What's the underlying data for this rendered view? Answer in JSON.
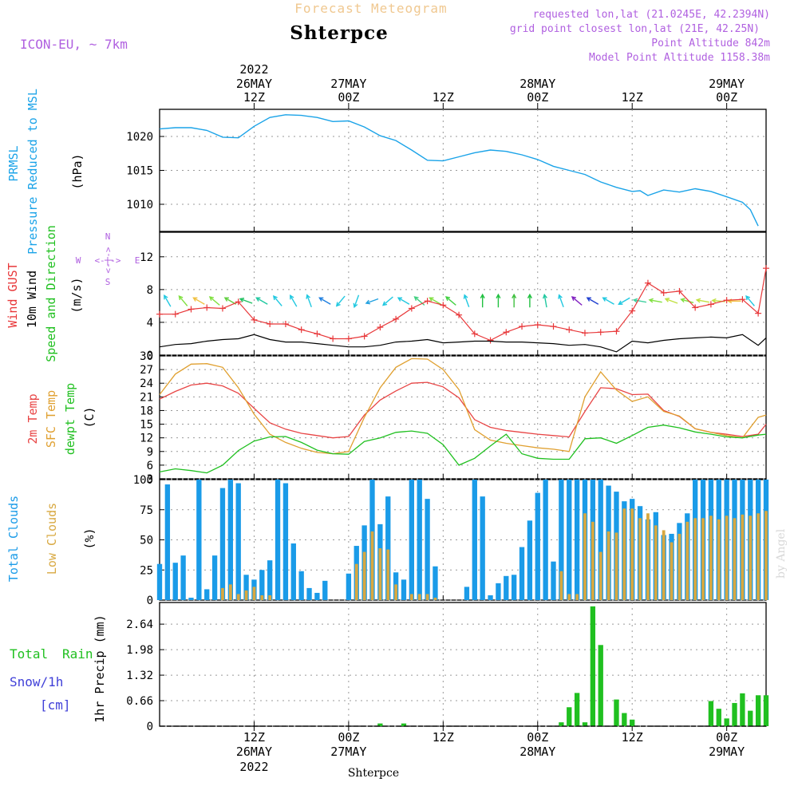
{
  "header": {
    "subtitle": "Forecast Meteogram",
    "station": "Shterpce",
    "model": "ICON-EU, ~ 7km",
    "requested": "requested lon,lat (21.0245E, 42.2394N)",
    "grid": "grid point closest lon,lat (21E, 42.25N)",
    "point_alt": "Point Altitude 842m",
    "model_alt": "Model Point Altitude 1158.38m",
    "credit": "by Angel",
    "footer": "Shterpce"
  },
  "colors": {
    "pressure": "#1aa3e8",
    "gust": "#e8383a",
    "wind": "#000000",
    "temp": "#e84545",
    "sfc": "#e0a030",
    "dew": "#20c020",
    "total_clouds": "#1a9be8",
    "low_clouds": "#d8a840",
    "rain": "#20c020",
    "snow": "#4040d8",
    "header_purple": "#b060e0"
  },
  "top_axis": {
    "year": "2022",
    "labels": [
      {
        "day": "26MAY",
        "hour": "12Z",
        "hour_index": 12
      },
      {
        "day": "27MAY",
        "hour": "00Z",
        "hour_index": 24
      },
      {
        "day": "",
        "hour": "12Z",
        "hour_index": 36
      },
      {
        "day": "28MAY",
        "hour": "00Z",
        "hour_index": 48
      },
      {
        "day": "",
        "hour": "12Z",
        "hour_index": 60
      },
      {
        "day": "29MAY",
        "hour": "00Z",
        "hour_index": 72
      }
    ]
  },
  "bottom_axis": {
    "year": "2022",
    "labels": [
      {
        "hour": "12Z",
        "day": "26MAY",
        "hour_index": 12
      },
      {
        "hour": "00Z",
        "day": "27MAY",
        "hour_index": 24
      },
      {
        "hour": "12Z",
        "day": "",
        "hour_index": 36
      },
      {
        "hour": "00Z",
        "day": "28MAY",
        "hour_index": 48
      },
      {
        "hour": "12Z",
        "day": "",
        "hour_index": 60
      },
      {
        "hour": "00Z",
        "day": "29MAY",
        "hour_index": 72
      }
    ]
  },
  "panels": {
    "pressure": {
      "label1": "PRMSL",
      "label2": "Pressure Reduced to MSL",
      "unit": "(hPa)"
    },
    "wind": {
      "label_gust": "Wind GUST",
      "label_wind": "10m Wind",
      "label_dir": "Speed and Direction",
      "unit": "(m/s)",
      "compass": {
        "n": "N",
        "s": "S",
        "w": "W",
        "e": "E",
        "arrow_ns": "<-|->",
        "arrow_we": "<-|->"
      }
    },
    "temp": {
      "label1": "2m Temp",
      "label2": "SFC Temp",
      "label3": "dewpt Temp",
      "unit": "(C)"
    },
    "clouds": {
      "label1": "Total Clouds",
      "label2": "Low Clouds",
      "unit": "(%)"
    },
    "precip": {
      "label_total": "Total",
      "label_rain": "Rain",
      "label_snow": "Snow/1h",
      "label_cm": "[cm]",
      "unit": "1hr Precip (mm)"
    }
  },
  "chart_data": [
    {
      "type": "line",
      "name": "pressure",
      "ylabel": "(hPa)",
      "ylim": [
        1006,
        1024
      ],
      "yticks": [
        1010,
        1015,
        1020
      ],
      "xlim": [
        0,
        77
      ],
      "x": [
        0,
        2,
        4,
        6,
        8,
        10,
        12,
        14,
        16,
        18,
        20,
        22,
        24,
        26,
        28,
        30,
        32,
        34,
        36,
        38,
        40,
        42,
        44,
        46,
        48,
        50,
        52,
        54,
        56,
        58,
        60,
        61,
        62,
        64,
        66,
        68,
        70,
        72,
        74,
        75,
        76
      ],
      "values": [
        1021.1,
        1021.3,
        1021.3,
        1020.9,
        1019.9,
        1019.8,
        1021.5,
        1022.8,
        1023.2,
        1023.1,
        1022.8,
        1022.2,
        1022.3,
        1021.4,
        1020.1,
        1019.4,
        1018.0,
        1016.5,
        1016.4,
        1017.0,
        1017.6,
        1018.0,
        1017.8,
        1017.3,
        1016.6,
        1015.6,
        1015.0,
        1014.4,
        1013.3,
        1012.5,
        1011.9,
        1012.0,
        1011.3,
        1012.1,
        1011.8,
        1012.3,
        1011.9,
        1011.1,
        1010.3,
        1009.2,
        1006.8
      ]
    },
    {
      "type": "line",
      "name": "wind",
      "ylabel": "(m/s)",
      "ylim": [
        0,
        15
      ],
      "yticks": [
        0,
        4,
        8,
        12
      ],
      "xlim": [
        0,
        77
      ],
      "x": [
        0,
        2,
        4,
        6,
        8,
        10,
        12,
        14,
        16,
        18,
        20,
        22,
        24,
        26,
        28,
        30,
        32,
        34,
        36,
        38,
        40,
        42,
        44,
        46,
        48,
        50,
        52,
        54,
        56,
        58,
        60,
        62,
        64,
        66,
        68,
        70,
        72,
        74,
        76,
        77
      ],
      "series": [
        {
          "name": "Wind GUST",
          "values": [
            5.0,
            5.0,
            5.6,
            5.8,
            5.7,
            6.5,
            4.3,
            3.8,
            3.8,
            3.1,
            2.6,
            2.0,
            2.0,
            2.3,
            3.4,
            4.4,
            5.7,
            6.6,
            6.1,
            4.9,
            2.6,
            1.8,
            2.8,
            3.5,
            3.7,
            3.5,
            3.1,
            2.7,
            2.8,
            2.9,
            5.4,
            8.8,
            7.6,
            7.8,
            5.8,
            6.2,
            6.7,
            6.8,
            5.1,
            10.6
          ]
        },
        {
          "name": "10m Wind",
          "values": [
            1.0,
            1.3,
            1.4,
            1.7,
            1.9,
            2.0,
            2.5,
            1.9,
            1.6,
            1.6,
            1.4,
            1.2,
            1.0,
            1.0,
            1.2,
            1.6,
            1.7,
            1.9,
            1.5,
            1.6,
            1.7,
            1.7,
            1.6,
            1.6,
            1.5,
            1.4,
            1.2,
            1.3,
            1.0,
            0.4,
            1.7,
            1.5,
            1.8,
            2.0,
            2.1,
            2.2,
            2.1,
            2.5,
            1.2,
            2.1
          ]
        }
      ],
      "arrows": [
        {
          "x": 1,
          "dir": 330,
          "color": "#20c8e0"
        },
        {
          "x": 3,
          "dir": 320,
          "color": "#80e040"
        },
        {
          "x": 5,
          "dir": 300,
          "color": "#f0c040"
        },
        {
          "x": 7,
          "dir": 310,
          "color": "#80e040"
        },
        {
          "x": 9,
          "dir": 300,
          "color": "#60d040"
        },
        {
          "x": 11,
          "dir": 290,
          "color": "#20c060"
        },
        {
          "x": 13,
          "dir": 300,
          "color": "#20c8a0"
        },
        {
          "x": 15,
          "dir": 320,
          "color": "#20c8e0"
        },
        {
          "x": 17,
          "dir": 330,
          "color": "#20c8e0"
        },
        {
          "x": 19,
          "dir": 340,
          "color": "#20c8e0"
        },
        {
          "x": 21,
          "dir": 300,
          "color": "#2080e0"
        },
        {
          "x": 23,
          "dir": 220,
          "color": "#20c8e0"
        },
        {
          "x": 25,
          "dir": 200,
          "color": "#20c8e0"
        },
        {
          "x": 27,
          "dir": 250,
          "color": "#20a0e0"
        },
        {
          "x": 29,
          "dir": 230,
          "color": "#20c8e0"
        },
        {
          "x": 31,
          "dir": 300,
          "color": "#20c8e0"
        },
        {
          "x": 33,
          "dir": 310,
          "color": "#40d080"
        },
        {
          "x": 35,
          "dir": 300,
          "color": "#80e040"
        },
        {
          "x": 37,
          "dir": 310,
          "color": "#40d040"
        },
        {
          "x": 39,
          "dir": 340,
          "color": "#20c8e0"
        },
        {
          "x": 41,
          "dir": 0,
          "color": "#20c040"
        },
        {
          "x": 43,
          "dir": 0,
          "color": "#20c040"
        },
        {
          "x": 45,
          "dir": 0,
          "color": "#40c040"
        },
        {
          "x": 47,
          "dir": 0,
          "color": "#20c040"
        },
        {
          "x": 49,
          "dir": 350,
          "color": "#20c8a0"
        },
        {
          "x": 51,
          "dir": 340,
          "color": "#20c8e0"
        },
        {
          "x": 53,
          "dir": 310,
          "color": "#8020c0"
        },
        {
          "x": 55,
          "dir": 300,
          "color": "#2040d0"
        },
        {
          "x": 57,
          "dir": 300,
          "color": "#20c8e0"
        },
        {
          "x": 59,
          "dir": 240,
          "color": "#20c8e0"
        },
        {
          "x": 61,
          "dir": 280,
          "color": "#40d0a0"
        },
        {
          "x": 63,
          "dir": 280,
          "color": "#80e040"
        },
        {
          "x": 65,
          "dir": 290,
          "color": "#c0e040"
        },
        {
          "x": 67,
          "dir": 285,
          "color": "#80e040"
        },
        {
          "x": 69,
          "dir": 280,
          "color": "#c0e040"
        },
        {
          "x": 71,
          "dir": 275,
          "color": "#c0e040"
        },
        {
          "x": 73,
          "dir": 270,
          "color": "#f0c040"
        },
        {
          "x": 75,
          "dir": 320,
          "color": "#20c8e0"
        }
      ]
    },
    {
      "type": "line",
      "name": "temperature",
      "ylabel": "(C)",
      "ylim": [
        3,
        30
      ],
      "yticks": [
        3,
        6,
        9,
        12,
        15,
        18,
        21,
        24,
        27,
        30
      ],
      "xlim": [
        0,
        77
      ],
      "x": [
        0,
        2,
        4,
        6,
        8,
        10,
        12,
        14,
        16,
        18,
        20,
        22,
        24,
        26,
        28,
        30,
        32,
        34,
        36,
        38,
        40,
        42,
        44,
        46,
        48,
        50,
        52,
        54,
        56,
        58,
        60,
        62,
        64,
        66,
        68,
        70,
        72,
        74,
        76,
        77
      ],
      "series": [
        {
          "name": "2m Temp",
          "values": [
            20.5,
            22.2,
            23.6,
            24.0,
            23.4,
            21.8,
            18.5,
            15.3,
            13.9,
            13.0,
            12.5,
            12.0,
            12.3,
            17.0,
            20.3,
            22.3,
            24.0,
            24.2,
            23.2,
            20.8,
            16.0,
            14.3,
            13.6,
            13.2,
            12.8,
            12.5,
            12.2,
            17.8,
            23.0,
            22.8,
            21.5,
            21.6,
            18.0,
            16.7,
            14.0,
            13.2,
            12.8,
            12.3,
            12.8,
            15.0
          ]
        },
        {
          "name": "SFC Temp",
          "values": [
            21.5,
            26.0,
            28.2,
            28.3,
            27.5,
            23.0,
            17.2,
            12.8,
            11.0,
            9.7,
            8.8,
            8.5,
            9.0,
            16.5,
            23.0,
            27.5,
            29.4,
            29.3,
            27.0,
            22.6,
            13.8,
            11.5,
            10.8,
            10.3,
            9.8,
            9.5,
            9.0,
            21.0,
            26.5,
            22.5,
            20.0,
            21.0,
            17.8,
            16.8,
            14.0,
            13.2,
            12.5,
            12.0,
            16.5,
            17.0
          ]
        },
        {
          "name": "dewpt Temp",
          "values": [
            4.5,
            5.2,
            4.8,
            4.3,
            6.0,
            9.2,
            11.3,
            12.2,
            12.3,
            11.0,
            9.3,
            8.5,
            8.4,
            11.2,
            12.0,
            13.2,
            13.5,
            13.0,
            10.5,
            6.0,
            7.5,
            10.2,
            12.8,
            8.5,
            7.5,
            7.3,
            7.3,
            11.8,
            12.0,
            10.8,
            12.5,
            14.3,
            14.8,
            14.2,
            13.3,
            12.8,
            12.2,
            12.0,
            12.6,
            12.8
          ]
        }
      ]
    },
    {
      "type": "bar",
      "name": "clouds",
      "ylabel": "(%)",
      "ylim": [
        0,
        100
      ],
      "yticks": [
        0,
        25,
        50,
        75,
        100
      ],
      "xlim": [
        0,
        77
      ],
      "x": [
        0,
        1,
        2,
        3,
        4,
        5,
        6,
        7,
        8,
        9,
        10,
        11,
        12,
        13,
        14,
        15,
        16,
        17,
        18,
        19,
        20,
        21,
        22,
        23,
        24,
        25,
        26,
        27,
        28,
        29,
        30,
        31,
        32,
        33,
        34,
        35,
        36,
        37,
        38,
        39,
        40,
        41,
        42,
        43,
        44,
        45,
        46,
        47,
        48,
        49,
        50,
        51,
        52,
        53,
        54,
        55,
        56,
        57,
        58,
        59,
        60,
        61,
        62,
        63,
        64,
        65,
        66,
        67,
        68,
        69,
        70,
        71,
        72,
        73,
        74,
        75,
        76,
        77
      ],
      "series": [
        {
          "name": "Total Clouds",
          "values": [
            30,
            96,
            31,
            37,
            2,
            100,
            9,
            37,
            93,
            100,
            97,
            21,
            17,
            25,
            33,
            100,
            97,
            47,
            24,
            10,
            6,
            16,
            0,
            0,
            22,
            45,
            62,
            100,
            63,
            86,
            23,
            17,
            100,
            100,
            84,
            28,
            0,
            0,
            0,
            11,
            100,
            86,
            4,
            14,
            20,
            21,
            44,
            66,
            89,
            100,
            32,
            100,
            100,
            100,
            100,
            100,
            100,
            95,
            90,
            82,
            84,
            78,
            67,
            73,
            54,
            55,
            64,
            72,
            100,
            100,
            100,
            100,
            100,
            100,
            100,
            100,
            100,
            100
          ]
        },
        {
          "name": "Low Clouds",
          "values": [
            0,
            0,
            0,
            0,
            0,
            0,
            0,
            0,
            10,
            13,
            5,
            8,
            11,
            4,
            4,
            0,
            0,
            0,
            0,
            0,
            0,
            0,
            0,
            0,
            0,
            30,
            40,
            57,
            43,
            42,
            13,
            0,
            5,
            5,
            5,
            2,
            0,
            0,
            0,
            0,
            0,
            0,
            0,
            0,
            0,
            0,
            0,
            0,
            0,
            0,
            0,
            24,
            5,
            5,
            72,
            65,
            40,
            57,
            56,
            76,
            76,
            68,
            72,
            62,
            58,
            48,
            55,
            65,
            68,
            68,
            70,
            67,
            70,
            68,
            71,
            70,
            72,
            74
          ]
        }
      ]
    },
    {
      "type": "bar",
      "name": "precipitation",
      "ylabel": "1hr Precip (mm)",
      "ylim": [
        0,
        3.2
      ],
      "yticks": [
        0,
        0.66,
        1.32,
        1.98,
        2.64
      ],
      "xlim": [
        0,
        77
      ],
      "x": [
        28,
        31,
        51,
        52,
        53,
        54,
        55,
        56,
        57,
        58,
        59,
        60,
        61,
        62,
        70,
        71,
        72,
        73,
        74,
        75,
        76,
        77
      ],
      "series": [
        {
          "name": "Total Rain",
          "values": [
            0.07,
            0.07,
            0.1,
            0.49,
            0.86,
            0.1,
            3.1,
            2.1,
            0,
            0.69,
            0.34,
            0.17,
            0,
            0,
            0.65,
            0.45,
            0.2,
            0.6,
            0.85,
            0.4,
            0.8,
            0.8
          ]
        }
      ]
    }
  ]
}
